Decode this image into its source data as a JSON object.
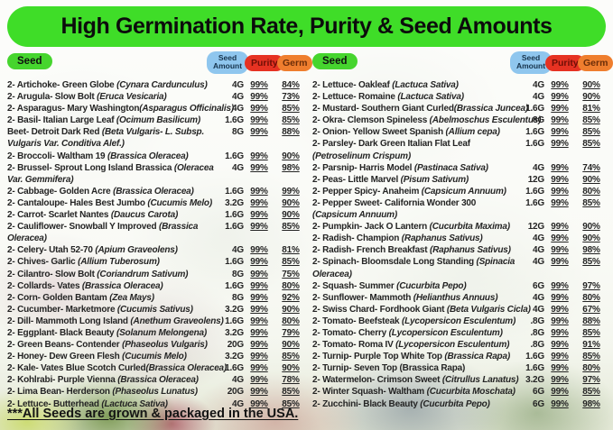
{
  "banner": {
    "title": "High Germination Rate, Purity & Seed Amounts"
  },
  "column_headers": {
    "seed": "Seed",
    "seed_amount": "Seed Amount",
    "purity": "Purity",
    "germ": "Germ"
  },
  "footer_note": "***All Seeds are grown & packaged in the USA. ",
  "colors": {
    "banner_green": "#3fdd28",
    "seed_pill_green": "#46d52e",
    "amount_pill_blue": "#8fc6ee",
    "purity_pill_red": "#e63222",
    "germ_pill_orange": "#ef7e2e",
    "text": "#242424"
  },
  "left_rows": [
    {
      "name": "2- Artichoke- Green Globe ",
      "latin": "(Cynara Cardunculus)",
      "amount": "4G",
      "purity": "99%",
      "germ": "84%"
    },
    {
      "name": "2- Arugula- Slow Bolt ",
      "latin": "(Eruca Vesicaria)",
      "amount": "4G",
      "purity": "99%",
      "germ": "73%"
    },
    {
      "name": "2- Asparagus- Mary Washington",
      "latin": "(Asparagus Officinalis)",
      "amount": "4G",
      "purity": "99%",
      "germ": "85%"
    },
    {
      "name": "2- Basil- Italian Large Leaf ",
      "latin": "(Ocimum Basilicum)",
      "amount": "1.6G",
      "purity": "99%",
      "germ": "85%"
    },
    {
      "name": "Beet- Detroit Dark Red ",
      "latin": "(Beta Vulgaris- L. Subsp. Vulgaris Var. Conditiva Alef.)",
      "amount": "8G",
      "purity": "99%",
      "germ": "88%",
      "wrap": true
    },
    {
      "name": "2- Broccoli- Waltham 19 ",
      "latin": "(Brassica Oleracea)",
      "amount": "1.6G",
      "purity": "99%",
      "germ": "90%"
    },
    {
      "name": "2- Brussel- Sprout Long Island Brassica ",
      "latin": "(Oleracea Var. Gemmifera)",
      "amount": "4G",
      "purity": "99%",
      "germ": "98%",
      "wrap": true
    },
    {
      "name": "2- Cabbage- Golden Acre ",
      "latin": "(Brassica Oleracea)",
      "amount": "1.6G",
      "purity": "99%",
      "germ": "99%"
    },
    {
      "name": "2- Cantaloupe- Hales Best Jumbo ",
      "latin": "(Cucumis Melo)",
      "amount": "3.2G",
      "purity": "99%",
      "germ": "90%"
    },
    {
      "name": "2- Carrot- Scarlet Nantes ",
      "latin": "(Daucus Carota)",
      "amount": "1.6G",
      "purity": "99%",
      "germ": "90%"
    },
    {
      "name": "2- Cauliflower- Snowball Y Improved ",
      "latin": "(Brassica Oleracea)",
      "amount": "1.6G",
      "purity": "99%",
      "germ": "85%",
      "wrap": true
    },
    {
      "name": "2- Celery- Utah 52-70 ",
      "latin": "(Apium Graveolens)",
      "amount": "4G",
      "purity": "99%",
      "germ": "81%"
    },
    {
      "name": "2- Chives- Garlic ",
      "latin": "(Allium Tuberosum)",
      "amount": "1.6G",
      "purity": "99%",
      "germ": "85%"
    },
    {
      "name": "2- Cilantro- Slow Bolt ",
      "latin": "(Coriandrum Sativum)",
      "amount": "8G",
      "purity": "99%",
      "germ": "75%"
    },
    {
      "name": "2- Collards- Vates ",
      "latin": "(Brassica Oleracea)",
      "amount": "1.6G",
      "purity": "99%",
      "germ": "80%"
    },
    {
      "name": "2- Corn- Golden Bantam ",
      "latin": "(Zea Mays)",
      "amount": "8G",
      "purity": "99%",
      "germ": "92%"
    },
    {
      "name": "2- Cucumber- Marketmore ",
      "latin": "(Cucumis Sativus)",
      "amount": "3.2G",
      "purity": "99%",
      "germ": "90%"
    },
    {
      "name": "2- Dill- Mammoth Long Island ",
      "latin": "(Anethum Graveolens)",
      "amount": "1.6G",
      "purity": "99%",
      "germ": "80%"
    },
    {
      "name": "2- Eggplant- Black Beauty ",
      "latin": "(Solanum Melongena)",
      "amount": "3.2G",
      "purity": "99%",
      "germ": "79%"
    },
    {
      "name": "2- Green Beans- Contender ",
      "latin": "(Phaseolus Vulgaris)",
      "amount": "20G",
      "purity": "99%",
      "germ": "90%"
    },
    {
      "name": "2- Honey- Dew Green Flesh ",
      "latin": "(Cucumis Melo)",
      "amount": "3.2G",
      "purity": "99%",
      "germ": "85%"
    },
    {
      "name": "2- Kale- Vates Blue Scotch Curled",
      "latin": "(Brassica Oleracea)",
      "amount": "1.6G",
      "purity": "99%",
      "germ": "90%"
    },
    {
      "name": "2- Kohlrabi- Purple Vienna ",
      "latin": "(Brassica Oleracea)",
      "amount": "4G",
      "purity": "99%",
      "germ": "78%"
    },
    {
      "name": "2- Lima Bean- Herderson ",
      "latin": "(Phaseolus Lunatus)",
      "amount": "20G",
      "purity": "99%",
      "germ": "85%"
    },
    {
      "name": "2- Lettuce- Butterhead ",
      "latin": "(Lactuca Sativa)",
      "amount": "4G",
      "purity": "99%",
      "germ": "85%"
    }
  ],
  "right_rows": [
    {
      "name": "2- Lettuce- Oakleaf ",
      "latin": "(Lactuca Sativa)",
      "amount": "4G",
      "purity": "99%",
      "germ": "90%"
    },
    {
      "name": "2- Lettuce- Romaine ",
      "latin": "(Lactuca Sativa)",
      "amount": "4G",
      "purity": "99%",
      "germ": "90%"
    },
    {
      "name": "2- Mustard- Southern Giant Curled",
      "latin": "(Brassica Juncea)",
      "amount": "1.6G",
      "purity": "99%",
      "germ": "81%"
    },
    {
      "name": "2- Okra- Clemson Spineless ",
      "latin": "(Abelmoschus Esculentus)",
      "amount": "8G",
      "purity": "99%",
      "germ": "85%"
    },
    {
      "name": "2- Onion- Yellow Sweet Spanish ",
      "latin": "(Allium cepa)",
      "amount": "1.6G",
      "purity": "99%",
      "germ": "85%"
    },
    {
      "name": "2- Parsley- Dark Green Italian Flat Leaf ",
      "latin": "(Petroselinum Crispum)",
      "amount": "1.6G",
      "purity": "99%",
      "germ": "85%",
      "wrap": true
    },
    {
      "name": "2- Parsnip- Harris Model ",
      "latin": "(Pastinaca Sativa)",
      "amount": "4G",
      "purity": "99%",
      "germ": "74%"
    },
    {
      "name": "2- Peas- Little Marvel ",
      "latin": "(Pisum Sativum)",
      "amount": "12G",
      "purity": "99%",
      "germ": "90%"
    },
    {
      "name": "2- Pepper Spicy- Anaheim ",
      "latin": "(Capsicum Annuum)",
      "amount": "1.6G",
      "purity": "99%",
      "germ": "80%"
    },
    {
      "name": "2- Pepper Sweet- California Wonder 300 ",
      "latin": "(Capsicum Annuum)",
      "amount": "1.6G",
      "purity": "99%",
      "germ": "85%",
      "wrap": true
    },
    {
      "name": "2- Pumpkin- Jack O Lantern ",
      "latin": "(Cucurbita Maxima)",
      "amount": "12G",
      "purity": "99%",
      "germ": "90%"
    },
    {
      "name": "2- Radish- Champion ",
      "latin": "(Raphanus Sativus)",
      "amount": "4G",
      "purity": "99%",
      "germ": "90%"
    },
    {
      "name": "2- Radish- French Breakfast ",
      "latin": "(Raphanus Sativus)",
      "amount": "4G",
      "purity": "99%",
      "germ": "98%"
    },
    {
      "name": "2- Spinach- Bloomsdale Long Standing ",
      "latin": "(Spinacia Oleracea)",
      "amount": "4G",
      "purity": "99%",
      "germ": "85%",
      "wrap": true
    },
    {
      "name": "2- Squash- Summer ",
      "latin": "(Cucurbita Pepo)",
      "amount": "6G",
      "purity": "99%",
      "germ": "97%"
    },
    {
      "name": "2- Sunflower- Mammoth ",
      "latin": "(Helianthus Annuus)",
      "amount": "4G",
      "purity": "99%",
      "germ": "80%"
    },
    {
      "name": "2- Swiss Chard- Fordhook Giant ",
      "latin": "(Beta Vulgaris Cicla)",
      "amount": "4G",
      "purity": "99%",
      "germ": "67%"
    },
    {
      "name": "2- Tomato- Beefsteak ",
      "latin": "(Lycopersicon Esculentum)",
      "amount": ".8G",
      "purity": "99%",
      "germ": "88%"
    },
    {
      "name": "2- Tomato- Cherry ",
      "latin": "(Lycopersicon Esculentum)",
      "amount": ".8G",
      "purity": "99%",
      "germ": "85%"
    },
    {
      "name": "2- Tomato- Roma IV ",
      "latin": "(Lycopersicon Esculentum)",
      "amount": ".8G",
      "purity": "99%",
      "germ": "91%"
    },
    {
      "name": "2- Turnip- Purple Top White Top ",
      "latin": "(Brassica Rapa)",
      "amount": "1.6G",
      "purity": "99%",
      "germ": "85%"
    },
    {
      "name": "2- Turnip- Seven Top (Brassica Rapa)",
      "latin": "",
      "amount": "1.6G",
      "purity": "99%",
      "germ": "80%"
    },
    {
      "name": "2- Watermelon- Crimson Sweet ",
      "latin": "(Citrullus Lanatus)",
      "amount": "3.2G",
      "purity": "99%",
      "germ": "97%"
    },
    {
      "name": "2- Winter Squash- Waltham ",
      "latin": "(Cucurbita Moschata)",
      "amount": "6G",
      "purity": "99%",
      "germ": "85%"
    },
    {
      "name": "2- Zucchini-  Black Beauty ",
      "latin": "(Cucurbita Pepo)",
      "amount": "6G",
      "purity": "99%",
      "germ": "98%"
    }
  ]
}
